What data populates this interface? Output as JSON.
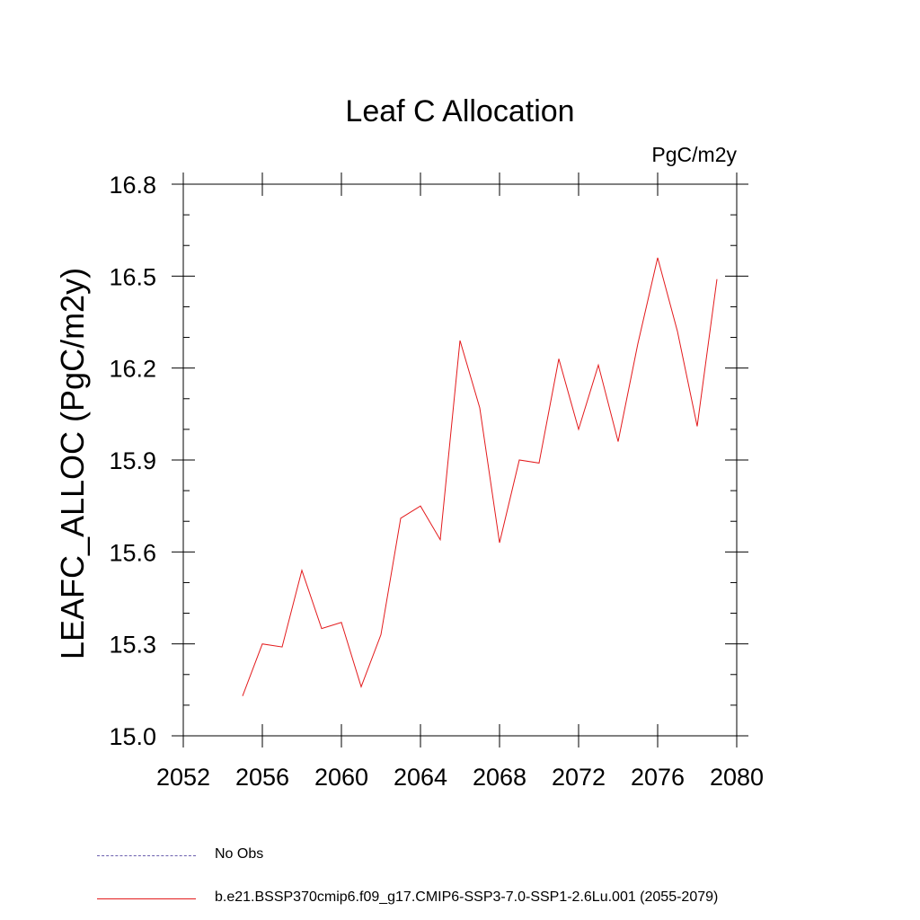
{
  "chart_data": {
    "type": "line",
    "title": "Leaf C Allocation",
    "units_label": "PgC/m2y",
    "xlabel": "",
    "ylabel": "LEAFC_ALLOC  (PgC/m2y)",
    "xlim": [
      2052,
      2080
    ],
    "ylim": [
      15.0,
      16.8
    ],
    "x_ticks": [
      2052,
      2056,
      2060,
      2064,
      2068,
      2072,
      2076,
      2080
    ],
    "x_tick_labels": [
      "2052",
      "2056",
      "2060",
      "2064",
      "2068",
      "2072",
      "2076",
      "2080"
    ],
    "y_ticks": [
      15.0,
      15.3,
      15.6,
      15.9,
      16.2,
      16.5,
      16.8
    ],
    "y_tick_labels": [
      "15.0",
      "15.3",
      "15.6",
      "15.9",
      "16.2",
      "16.5",
      "16.8"
    ],
    "grid": false,
    "series": [
      {
        "name": "b.e21.BSSP370cmip6.f09_g17.CMIP6-SSP3-7.0-SSP1-2.6Lu.001 (2055-2079)",
        "color": "#e31a1c",
        "x": [
          2055,
          2056,
          2057,
          2058,
          2059,
          2060,
          2061,
          2062,
          2063,
          2064,
          2065,
          2066,
          2067,
          2068,
          2069,
          2070,
          2071,
          2072,
          2073,
          2074,
          2075,
          2076,
          2077,
          2078,
          2079
        ],
        "values": [
          15.13,
          15.3,
          15.29,
          15.54,
          15.35,
          15.37,
          15.16,
          15.33,
          15.71,
          15.75,
          15.64,
          16.29,
          16.07,
          15.63,
          15.9,
          15.89,
          16.23,
          16.0,
          16.21,
          15.96,
          16.28,
          16.56,
          16.32,
          16.01,
          16.49
        ]
      }
    ],
    "legend": {
      "placement": "bottom",
      "entries": [
        {
          "label": "No Obs",
          "style": "dashed",
          "color": "#6b5fae"
        },
        {
          "label": "b.e21.BSSP370cmip6.f09_g17.CMIP6-SSP3-7.0-SSP1-2.6Lu.001 (2055-2079)",
          "style": "solid",
          "color": "#e31a1c"
        }
      ]
    }
  }
}
